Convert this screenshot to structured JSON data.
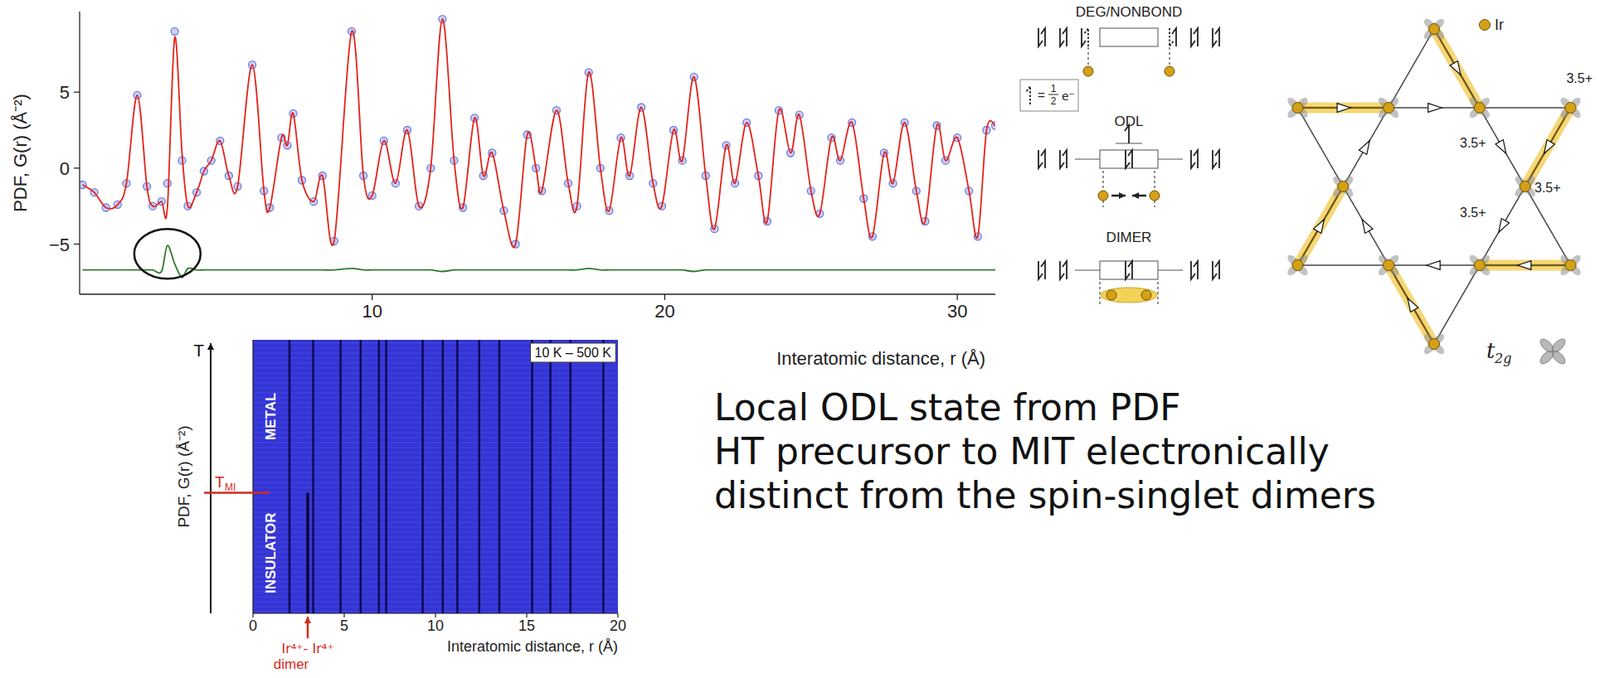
{
  "chart_data": [
    {
      "type": "line",
      "y_label": "PDF, G(r) (Å⁻²)",
      "x_label": "Interatomic distance, r (Å)",
      "xlim": [
        0,
        31.3
      ],
      "ylim": [
        -8.3,
        10.3
      ],
      "xticks": [
        10,
        20,
        30
      ],
      "yticks": [
        {
          "value": -5,
          "label": "−5"
        },
        0,
        5
      ],
      "x": [
        0.1,
        0.5,
        0.9,
        1.3,
        1.6,
        1.97,
        2.3,
        2.5,
        2.8,
        3.0,
        3.25,
        3.5,
        3.7,
        4.0,
        4.25,
        4.5,
        4.8,
        5.1,
        5.4,
        5.9,
        6.3,
        6.5,
        6.9,
        7.1,
        7.3,
        7.6,
        8.0,
        8.3,
        8.7,
        9.3,
        9.7,
        10.0,
        10.4,
        10.8,
        11.2,
        11.6,
        12.0,
        12.4,
        12.8,
        13.1,
        13.5,
        13.8,
        14.1,
        14.5,
        14.9,
        15.3,
        15.6,
        15.8,
        16.3,
        16.7,
        17.0,
        17.4,
        17.8,
        18.1,
        18.5,
        18.8,
        19.2,
        19.6,
        19.9,
        20.3,
        20.6,
        21.0,
        21.4,
        21.7,
        22.1,
        22.4,
        22.8,
        23.2,
        23.5,
        23.9,
        24.3,
        24.6,
        25.0,
        25.3,
        25.7,
        26.0,
        26.4,
        26.8,
        27.1,
        27.5,
        27.8,
        28.2,
        28.6,
        28.9,
        29.3,
        29.6,
        30.0,
        30.4,
        30.7,
        31.0,
        31.3
      ],
      "series": [
        {
          "type": "scatter",
          "color": "#6b7de0",
          "marker": "circle",
          "line_style": "none",
          "values": [
            -1.1,
            -1.6,
            -2.6,
            -2.4,
            -1.0,
            4.8,
            -1.2,
            -2.5,
            -2.2,
            -1.0,
            9.0,
            0.5,
            -2.5,
            -1.6,
            -0.2,
            0.5,
            1.8,
            -0.5,
            -1.2,
            6.8,
            -1.5,
            -2.6,
            2.0,
            1.5,
            3.6,
            -0.8,
            -2.2,
            -0.5,
            -4.8,
            9.0,
            -0.5,
            -1.8,
            1.8,
            -1.0,
            2.5,
            -2.5,
            0.0,
            9.8,
            0.5,
            -2.6,
            3.3,
            -0.5,
            1.0,
            -2.8,
            -5.0,
            2.2,
            0.0,
            -1.5,
            3.8,
            -1.0,
            -2.5,
            6.3,
            0.0,
            -2.8,
            2.0,
            -0.5,
            4.0,
            -1.0,
            -2.5,
            2.5,
            0.5,
            6.0,
            -0.5,
            -4.0,
            1.5,
            -1.0,
            3.0,
            -0.5,
            -3.5,
            3.8,
            1.0,
            3.5,
            -1.5,
            -3.0,
            2.0,
            0.5,
            3.0,
            -2.0,
            -4.5,
            1.0,
            -1.0,
            3.0,
            -1.5,
            -3.5,
            2.8,
            0.5,
            2.0,
            -1.5,
            -4.5,
            2.5,
            2.8
          ]
        },
        {
          "type": "line",
          "color": "#e3241b",
          "line_style": "solid",
          "values": [
            -1.1,
            -1.6,
            -2.6,
            -2.4,
            -1.0,
            4.8,
            -1.2,
            -2.5,
            -2.2,
            -2.6,
            8.6,
            1.0,
            -2.5,
            -1.6,
            -0.2,
            0.5,
            1.8,
            -0.5,
            -1.2,
            6.8,
            -1.5,
            -2.6,
            2.0,
            1.5,
            3.6,
            -0.8,
            -2.2,
            -0.5,
            -4.8,
            9.0,
            -0.5,
            -1.8,
            1.8,
            -1.0,
            2.5,
            -2.5,
            0.0,
            9.8,
            0.5,
            -2.6,
            3.3,
            -0.5,
            1.0,
            -2.8,
            -5.0,
            2.2,
            0.0,
            -1.5,
            3.8,
            -1.0,
            -2.5,
            6.3,
            0.0,
            -2.8,
            2.0,
            -0.5,
            4.0,
            -1.0,
            -2.5,
            2.5,
            0.5,
            6.0,
            -0.5,
            -4.0,
            1.5,
            -1.0,
            3.0,
            -0.5,
            -3.5,
            3.8,
            1.0,
            3.5,
            -1.5,
            -3.0,
            2.0,
            0.5,
            3.0,
            -2.0,
            -4.5,
            1.0,
            -1.0,
            3.0,
            -1.5,
            -3.5,
            2.8,
            0.5,
            2.0,
            -1.5,
            -4.5,
            2.5,
            2.8
          ]
        },
        {
          "type": "line",
          "color": "#2f7a2f",
          "line_style": "solid",
          "values": [
            -6.7,
            -6.7,
            -6.7,
            -6.7,
            -6.7,
            -6.7,
            -6.7,
            -6.7,
            -6.8,
            -5.1,
            -6.3,
            -7.2,
            -6.6,
            -6.7,
            -6.7,
            -6.7,
            -6.7,
            -6.7,
            -6.7,
            -6.7,
            -6.7,
            -6.7,
            -6.7,
            -6.7,
            -6.7,
            -6.7,
            -6.7,
            -6.7,
            -6.7,
            -6.6,
            -6.7,
            -6.7,
            -6.7,
            -6.7,
            -6.7,
            -6.7,
            -6.7,
            -6.8,
            -6.7,
            -6.7,
            -6.7,
            -6.7,
            -6.7,
            -6.7,
            -6.7,
            -6.7,
            -6.7,
            -6.7,
            -6.7,
            -6.7,
            -6.7,
            -6.6,
            -6.7,
            -6.7,
            -6.7,
            -6.7,
            -6.7,
            -6.7,
            -6.7,
            -6.7,
            -6.7,
            -6.8,
            -6.7,
            -6.7,
            -6.7,
            -6.7,
            -6.7,
            -6.7,
            -6.7,
            -6.7,
            -6.7,
            -6.7,
            -6.7,
            -6.7,
            -6.7,
            -6.7,
            -6.7,
            -6.7,
            -6.7,
            -6.7,
            -6.7,
            -6.7,
            -6.7,
            -6.7,
            -6.7,
            -6.7,
            -6.7,
            -6.7,
            -6.7,
            -6.7,
            -6.7
          ]
        }
      ]
    },
    {
      "type": "waterfall",
      "y_label": "PDF, G(r) (Å⁻²)",
      "x_label": "Interatomic distance, r (Å)",
      "xlim": [
        0,
        20
      ],
      "xticks": [
        0,
        5,
        10,
        15,
        20
      ],
      "ylim": [
        10,
        500
      ],
      "tick_labels": "x",
      "color": "#3535d5",
      "range_label": "10 K – 500 K",
      "axis_arrow_label": "T",
      "peaks": [
        2.0,
        3.3,
        4.8,
        5.9,
        6.9,
        7.3,
        9.3,
        10.4,
        11.2,
        12.4,
        13.5,
        15.3,
        16.3,
        17.4,
        19.2
      ],
      "transition": {
        "value": 226,
        "label": "T",
        "label_sub": "MI",
        "color": "#d42a1e"
      },
      "regions": [
        "METAL",
        "INSULATOR"
      ],
      "dimer": {
        "value": 3.0,
        "label": "Ir⁴⁺- Ir⁴⁺",
        "sublabel": "dimer"
      }
    }
  ],
  "diagram": {
    "orbital_levels": [
      "DEG/NONBOND",
      "ODL",
      "DIMER"
    ],
    "half_electron": {
      "eq": "=",
      "num": "1",
      "den": "2",
      "unit": "e⁻"
    },
    "structure": {
      "atom_label": "Ir",
      "valence_labels": [
        "3.5+",
        "3.5+",
        "3.5+",
        "3.5+"
      ],
      "orbital_label": "t",
      "orbital_label_sub": "2g"
    }
  },
  "notes": [
    "Local ODL state from PDF",
    "HT precursor to MIT electronically",
    "distinct from the spin-singlet dimers"
  ]
}
